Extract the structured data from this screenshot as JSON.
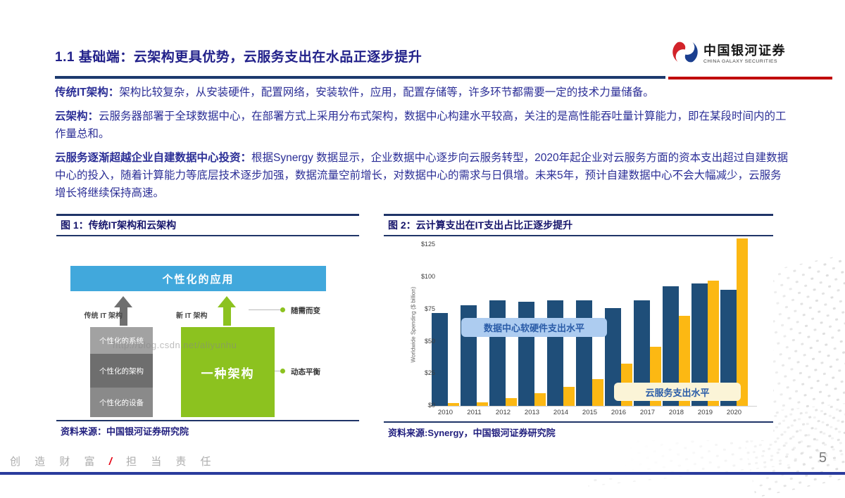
{
  "header": {
    "title": "1.1  基础端：云架构更具优势，云服务支出在水品正逐步提升",
    "logo": {
      "cn": "中国银河证券",
      "en": "CHINA GALAXY SECURITIES"
    },
    "accent_navy": "#1c3a6e",
    "accent_red": "#c00000"
  },
  "paragraphs": [
    {
      "label": "传统IT架构：",
      "text": "架构比较复杂，从安装硬件，配置网络，安装软件，应用，配置存储等，许多环节都需要一定的技术力量储备。"
    },
    {
      "label": "云架构：",
      "text": "云服务器部署于全球数据中心，在部署方式上采用分布式架构，数据中心构建水平较高，关注的是高性能吞吐量计算能力，即在某段时间内的工作量总和。"
    },
    {
      "label": "云服务逐渐超越企业自建数据中心投资：",
      "text": "根据Synergy 数据显示，企业数据中心逐步向云服务转型，2020年起企业对云服务方面的资本支出超过自建数据中心的投入，随着计算能力等底层技术逐步加强，数据流量空前增长，对数据中心的需求与日俱增。未来5年，预计自建数据中心不会大幅减少，云服务增长将继续保持高速。"
    }
  ],
  "figure1": {
    "title": "图 1：传统IT架构和云架构",
    "source": "资料来源：中国银河证券研究院",
    "diagram": {
      "top_box": "个性化的应用",
      "left_arrow_label": "传统 IT 架构",
      "right_arrow_label": "新 IT 架构",
      "stack": [
        "个性化的系统",
        "个性化的架构",
        "个性化的设备"
      ],
      "green_box": "一种架构",
      "callout_top": "随需而变",
      "callout_bottom": "动态平衡",
      "watermark": "http://blog.csdn.net/aliyunhu"
    }
  },
  "figure2": {
    "title": "图 2：云计算支出在IT支出占比正逐步提升",
    "source": "资料来源:Synergy，中国银河证券研究院",
    "callout_blue": "数据中心软硬件支出水平",
    "callout_yellow": "云服务支出水平"
  },
  "chart_data": {
    "type": "bar",
    "title": "云计算支出在IT支出占比正逐步提升",
    "categories": [
      "2010",
      "2011",
      "2012",
      "2013",
      "2014",
      "2015",
      "2016",
      "2017",
      "2018",
      "2019",
      "2020"
    ],
    "series": [
      {
        "key": "datacenter",
        "name": "数据中心软硬件支出水平",
        "color": "#1f4e79",
        "values": [
          72,
          78,
          82,
          81,
          82,
          82,
          76,
          82,
          93,
          95,
          90
        ]
      },
      {
        "key": "cloud",
        "name": "云服务支出水平",
        "color": "#fcb813",
        "values": [
          2,
          3,
          6,
          10,
          15,
          21,
          33,
          46,
          70,
          97,
          130
        ]
      }
    ],
    "xlabel": "",
    "ylabel": "Worldwide Spending ($ billion)",
    "ylim": [
      0,
      131
    ],
    "yticks": [
      {
        "label": "$0",
        "value": 0
      },
      {
        "label": "$25",
        "value": 25
      },
      {
        "label": "$50",
        "value": 50
      },
      {
        "label": "$75",
        "value": 75
      },
      {
        "label": "$100",
        "value": 100
      },
      {
        "label": "$125",
        "value": 125
      }
    ],
    "grid": false,
    "legend_position": "inside-callouts"
  },
  "footer": {
    "slogan_left": "创 造 财 富",
    "slogan_separator": "/",
    "slogan_right": "担 当 责 任",
    "page_number": "5"
  }
}
